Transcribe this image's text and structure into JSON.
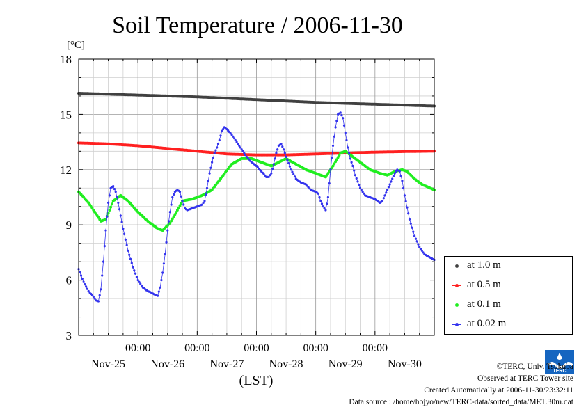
{
  "title": "Soil Temperature / 2006-11-30",
  "chart_data": {
    "type": "line",
    "unit_label": "[°C]",
    "xlabel": "(LST)",
    "ylim": [
      3,
      18
    ],
    "yticks": [
      3,
      6,
      9,
      12,
      15,
      18
    ],
    "x_range_hours": [
      0,
      144
    ],
    "x_time_labels": [
      "00:00",
      "00:00",
      "00:00",
      "00:00",
      "00:00"
    ],
    "x_day_labels": [
      "Nov-25",
      "Nov-26",
      "Nov-27",
      "Nov-28",
      "Nov-29",
      "Nov-30"
    ],
    "grid": true,
    "legend_position": "right",
    "series": [
      {
        "name": "at 1.0 m",
        "color": "#404040",
        "points": [
          [
            0,
            16.15
          ],
          [
            24,
            16.05
          ],
          [
            48,
            15.95
          ],
          [
            72,
            15.8
          ],
          [
            96,
            15.65
          ],
          [
            120,
            15.55
          ],
          [
            144,
            15.45
          ]
        ]
      },
      {
        "name": "at 0.5 m",
        "color": "#ff2020",
        "points": [
          [
            0,
            13.45
          ],
          [
            12,
            13.4
          ],
          [
            24,
            13.3
          ],
          [
            36,
            13.15
          ],
          [
            48,
            13.0
          ],
          [
            60,
            12.85
          ],
          [
            72,
            12.8
          ],
          [
            84,
            12.8
          ],
          [
            96,
            12.85
          ],
          [
            108,
            12.9
          ],
          [
            120,
            12.95
          ],
          [
            132,
            12.98
          ],
          [
            144,
            13.0
          ]
        ]
      },
      {
        "name": "at 0.1 m",
        "color": "#20ee20",
        "points": [
          [
            0,
            10.8
          ],
          [
            4,
            10.2
          ],
          [
            9,
            9.2
          ],
          [
            11,
            9.3
          ],
          [
            14,
            10.3
          ],
          [
            17,
            10.6
          ],
          [
            20,
            10.3
          ],
          [
            24,
            9.7
          ],
          [
            28,
            9.2
          ],
          [
            32,
            8.8
          ],
          [
            34,
            8.7
          ],
          [
            37,
            9.1
          ],
          [
            40,
            9.8
          ],
          [
            42,
            10.3
          ],
          [
            46,
            10.4
          ],
          [
            50,
            10.6
          ],
          [
            54,
            10.9
          ],
          [
            58,
            11.6
          ],
          [
            62,
            12.3
          ],
          [
            66,
            12.6
          ],
          [
            70,
            12.6
          ],
          [
            74,
            12.4
          ],
          [
            78,
            12.2
          ],
          [
            81,
            12.4
          ],
          [
            84,
            12.6
          ],
          [
            88,
            12.3
          ],
          [
            92,
            12.0
          ],
          [
            96,
            11.8
          ],
          [
            100,
            11.6
          ],
          [
            103,
            12.2
          ],
          [
            106,
            12.9
          ],
          [
            108,
            13.0
          ],
          [
            110,
            12.8
          ],
          [
            114,
            12.4
          ],
          [
            118,
            12.0
          ],
          [
            122,
            11.8
          ],
          [
            125,
            11.7
          ],
          [
            128,
            11.9
          ],
          [
            131,
            12.0
          ],
          [
            133,
            11.9
          ],
          [
            136,
            11.5
          ],
          [
            139,
            11.2
          ],
          [
            144,
            10.9
          ]
        ]
      },
      {
        "name": "at 0.02 m",
        "color": "#3333ee",
        "points": [
          [
            0,
            6.6
          ],
          [
            2,
            5.9
          ],
          [
            4,
            5.4
          ],
          [
            6,
            5.1
          ],
          [
            7,
            4.9
          ],
          [
            8,
            4.85
          ],
          [
            9,
            5.5
          ],
          [
            10,
            7.0
          ],
          [
            11,
            8.7
          ],
          [
            12,
            10.2
          ],
          [
            13,
            11.0
          ],
          [
            14,
            11.1
          ],
          [
            15,
            10.8
          ],
          [
            16,
            10.2
          ],
          [
            18,
            8.8
          ],
          [
            20,
            7.6
          ],
          [
            22,
            6.7
          ],
          [
            24,
            6.0
          ],
          [
            26,
            5.6
          ],
          [
            28,
            5.4
          ],
          [
            29,
            5.35
          ],
          [
            31,
            5.2
          ],
          [
            32,
            5.15
          ],
          [
            33,
            5.6
          ],
          [
            34,
            6.4
          ],
          [
            35,
            7.4
          ],
          [
            36,
            8.7
          ],
          [
            37,
            9.7
          ],
          [
            38,
            10.5
          ],
          [
            39,
            10.8
          ],
          [
            40,
            10.9
          ],
          [
            41,
            10.8
          ],
          [
            42,
            10.3
          ],
          [
            43,
            9.9
          ],
          [
            44,
            9.8
          ],
          [
            46,
            9.9
          ],
          [
            48,
            10.0
          ],
          [
            50,
            10.1
          ],
          [
            51,
            10.3
          ],
          [
            52,
            11.0
          ],
          [
            53,
            11.8
          ],
          [
            54,
            12.4
          ],
          [
            55,
            12.9
          ],
          [
            56,
            13.2
          ],
          [
            57,
            13.6
          ],
          [
            58,
            14.1
          ],
          [
            59,
            14.3
          ],
          [
            60,
            14.2
          ],
          [
            62,
            13.9
          ],
          [
            64,
            13.5
          ],
          [
            66,
            13.1
          ],
          [
            68,
            12.7
          ],
          [
            70,
            12.4
          ],
          [
            72,
            12.2
          ],
          [
            74,
            11.9
          ],
          [
            76,
            11.6
          ],
          [
            77,
            11.6
          ],
          [
            78,
            11.8
          ],
          [
            79,
            12.3
          ],
          [
            80,
            12.9
          ],
          [
            81,
            13.3
          ],
          [
            82,
            13.4
          ],
          [
            83,
            13.1
          ],
          [
            84,
            12.7
          ],
          [
            86,
            12.0
          ],
          [
            88,
            11.5
          ],
          [
            90,
            11.3
          ],
          [
            92,
            11.2
          ],
          [
            94,
            10.9
          ],
          [
            96,
            10.8
          ],
          [
            97,
            10.7
          ],
          [
            98,
            10.3
          ],
          [
            99,
            10.0
          ],
          [
            100,
            9.8
          ],
          [
            101,
            10.5
          ],
          [
            102,
            12.0
          ],
          [
            103,
            13.3
          ],
          [
            104,
            14.3
          ],
          [
            105,
            15.0
          ],
          [
            106,
            15.1
          ],
          [
            107,
            14.8
          ],
          [
            108,
            14.0
          ],
          [
            109,
            13.2
          ],
          [
            110,
            12.6
          ],
          [
            111,
            12.2
          ],
          [
            112,
            11.7
          ],
          [
            114,
            11.0
          ],
          [
            116,
            10.6
          ],
          [
            118,
            10.5
          ],
          [
            120,
            10.4
          ],
          [
            121,
            10.3
          ],
          [
            122,
            10.2
          ],
          [
            123,
            10.3
          ],
          [
            124,
            10.6
          ],
          [
            126,
            11.2
          ],
          [
            128,
            11.8
          ],
          [
            129,
            12.0
          ],
          [
            130,
            11.9
          ],
          [
            131,
            11.4
          ],
          [
            132,
            10.6
          ],
          [
            134,
            9.3
          ],
          [
            136,
            8.4
          ],
          [
            138,
            7.8
          ],
          [
            140,
            7.4
          ],
          [
            144,
            7.1
          ]
        ]
      }
    ]
  },
  "credits": {
    "line1": "©TERC, Univ. Tsukuba",
    "line2": "Observed at TERC Tower site",
    "line3": "Created Automatically at 2006-11-30/23:32:11",
    "line4": "Data source : /home/hojyo/new/TERC-data/sorted_data/MET.30m.dat"
  },
  "logo_text": "TERC",
  "icons": {
    "logo": "terc-logo-icon"
  }
}
